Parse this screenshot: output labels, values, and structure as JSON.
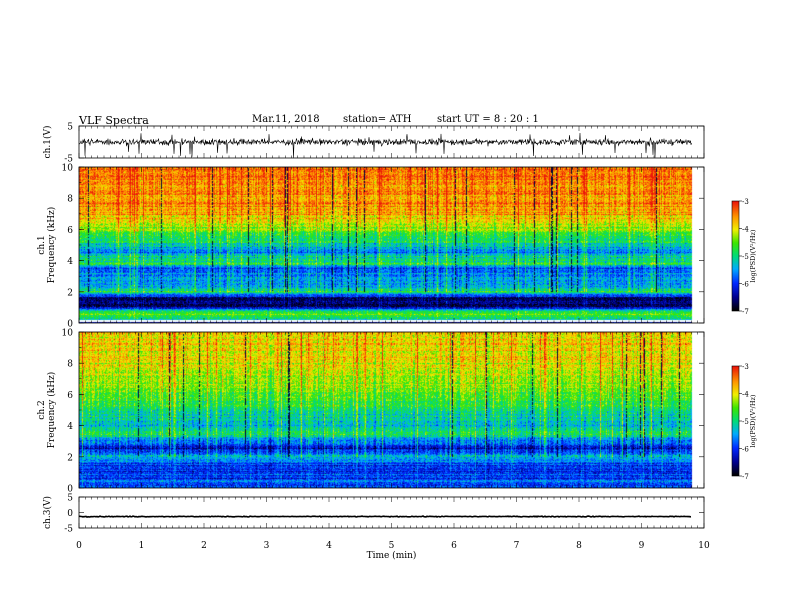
{
  "header": {
    "title": "VLF  Spectra",
    "date": "Mar.11, 2018",
    "station": "station= ATH",
    "start": "start  UT  =    8  : 20 : 1"
  },
  "chart_data": [
    {
      "type": "line",
      "name": "ch1-waveform",
      "ylabel": "ch.1(V)",
      "ylim": [
        -5,
        5
      ],
      "yticks": [
        "5",
        "-5"
      ],
      "xlim": [
        0,
        10
      ],
      "trace": {
        "mean": 0,
        "amplitude": 1.2,
        "spikes_to": -5,
        "end_min": 9.8
      }
    },
    {
      "type": "heatmap",
      "name": "ch1-spectrogram",
      "ylabel": "ch.1\nFrequency  (kHz)",
      "ylim": [
        0,
        10
      ],
      "yticks": [
        "0",
        "2",
        "4",
        "6",
        "8",
        "10"
      ],
      "xlim": [
        0,
        10
      ],
      "end_min": 9.8,
      "gap_band_khz": [
        0.05,
        0.22
      ],
      "colorbar": {
        "label": "log(PSD)(V²/Hz)",
        "ticks": [
          "-3",
          "-4",
          "-5",
          "-6",
          "-7"
        ],
        "range": [
          -7,
          -3
        ]
      },
      "profile_khz_to_logpsd": [
        [
          0.0,
          -6.2
        ],
        [
          0.25,
          -5.2
        ],
        [
          0.5,
          -4.5
        ],
        [
          0.8,
          -5.0
        ],
        [
          1.0,
          -6.5
        ],
        [
          1.6,
          -6.6
        ],
        [
          2.0,
          -4.8
        ],
        [
          2.3,
          -5.4
        ],
        [
          3.0,
          -5.6
        ],
        [
          3.5,
          -5.9
        ],
        [
          3.8,
          -4.8
        ],
        [
          4.2,
          -5.0
        ],
        [
          4.6,
          -5.6
        ],
        [
          5.2,
          -5.0
        ],
        [
          6.0,
          -4.4
        ],
        [
          7.0,
          -3.7
        ],
        [
          8.0,
          -3.5
        ],
        [
          10.0,
          -3.4
        ]
      ]
    },
    {
      "type": "heatmap",
      "name": "ch2-spectrogram",
      "ylabel": "ch.2\nFrequency  (kHz)",
      "ylim": [
        0,
        10
      ],
      "yticks": [
        "0",
        "2",
        "4",
        "6",
        "8",
        "10"
      ],
      "xlim": [
        0,
        10
      ],
      "end_min": 9.8,
      "colorbar": {
        "label": "log(PSD)(V²/Hz)",
        "ticks": [
          "-3",
          "-4",
          "-5",
          "-6",
          "-7"
        ],
        "range": [
          -7,
          -3
        ]
      },
      "profile_khz_to_logpsd": [
        [
          0.0,
          -6.0
        ],
        [
          0.3,
          -5.8
        ],
        [
          1.0,
          -6.0
        ],
        [
          1.6,
          -6.0
        ],
        [
          2.0,
          -5.2
        ],
        [
          2.5,
          -6.3
        ],
        [
          3.0,
          -5.6
        ],
        [
          3.6,
          -4.7
        ],
        [
          4.0,
          -5.3
        ],
        [
          5.0,
          -5.0
        ],
        [
          6.0,
          -4.5
        ],
        [
          7.0,
          -4.2
        ],
        [
          8.0,
          -4.0
        ],
        [
          10.0,
          -3.9
        ]
      ]
    },
    {
      "type": "line",
      "name": "ch3-waveform",
      "ylabel": "ch.3(V)",
      "ylim": [
        -5,
        5
      ],
      "yticks": [
        "5",
        "0",
        "-5"
      ],
      "xlim": [
        0,
        10
      ],
      "trace": {
        "mean": -1.3,
        "amplitude": 0.15,
        "end_min": 9.8
      }
    }
  ],
  "x_axis": {
    "label": "Time  (min)",
    "ticks": [
      "0",
      "1",
      "2",
      "3",
      "4",
      "5",
      "6",
      "7",
      "8",
      "9",
      "10"
    ]
  }
}
